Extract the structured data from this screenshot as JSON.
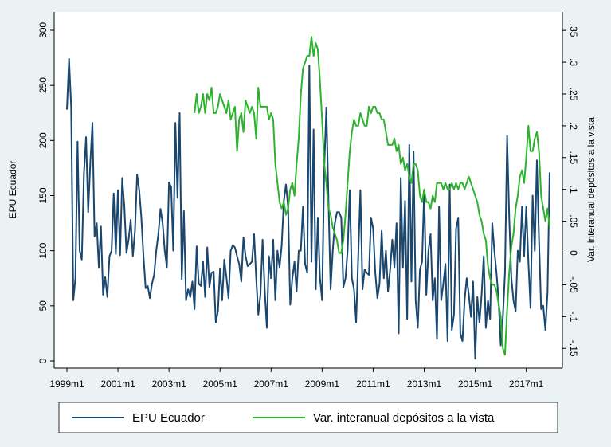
{
  "chart_data": {
    "type": "line",
    "x": [
      "1999m1",
      "1999m2",
      "1999m3",
      "1999m4",
      "1999m5",
      "1999m6",
      "1999m7",
      "1999m8",
      "1999m9",
      "1999m10",
      "1999m11",
      "1999m12",
      "2000m1",
      "2000m2",
      "2000m3",
      "2000m4",
      "2000m5",
      "2000m6",
      "2000m7",
      "2000m8",
      "2000m9",
      "2000m10",
      "2000m11",
      "2000m12",
      "2001m1",
      "2001m2",
      "2001m3",
      "2001m4",
      "2001m5",
      "2001m6",
      "2001m7",
      "2001m8",
      "2001m9",
      "2001m10",
      "2001m11",
      "2001m12",
      "2002m1",
      "2002m2",
      "2002m3",
      "2002m4",
      "2002m5",
      "2002m6",
      "2002m7",
      "2002m8",
      "2002m9",
      "2002m10",
      "2002m11",
      "2002m12",
      "2003m1",
      "2003m2",
      "2003m3",
      "2003m4",
      "2003m5",
      "2003m6",
      "2003m7",
      "2003m8",
      "2003m9",
      "2003m10",
      "2003m11",
      "2003m12",
      "2004m1",
      "2004m2",
      "2004m3",
      "2004m4",
      "2004m5",
      "2004m6",
      "2004m7",
      "2004m8",
      "2004m9",
      "2004m10",
      "2004m11",
      "2004m12",
      "2005m1",
      "2005m2",
      "2005m3",
      "2005m4",
      "2005m5",
      "2005m6",
      "2005m7",
      "2005m8",
      "2005m9",
      "2005m10",
      "2005m11",
      "2005m12",
      "2006m1",
      "2006m2",
      "2006m3",
      "2006m4",
      "2006m5",
      "2006m6",
      "2006m7",
      "2006m8",
      "2006m9",
      "2006m10",
      "2006m11",
      "2006m12",
      "2007m1",
      "2007m2",
      "2007m3",
      "2007m4",
      "2007m5",
      "2007m6",
      "2007m7",
      "2007m8",
      "2007m9",
      "2007m10",
      "2007m11",
      "2007m12",
      "2008m1",
      "2008m2",
      "2008m3",
      "2008m4",
      "2008m5",
      "2008m6",
      "2008m7",
      "2008m8",
      "2008m9",
      "2008m10",
      "2008m11",
      "2008m12",
      "2009m1",
      "2009m2",
      "2009m3",
      "2009m4",
      "2009m5",
      "2009m6",
      "2009m7",
      "2009m8",
      "2009m9",
      "2009m10",
      "2009m11",
      "2009m12",
      "2010m1",
      "2010m2",
      "2010m3",
      "2010m4",
      "2010m5",
      "2010m6",
      "2010m7",
      "2010m8",
      "2010m9",
      "2010m10",
      "2010m11",
      "2010m12",
      "2011m1",
      "2011m2",
      "2011m3",
      "2011m4",
      "2011m5",
      "2011m6",
      "2011m7",
      "2011m8",
      "2011m9",
      "2011m10",
      "2011m11",
      "2011m12",
      "2012m1",
      "2012m2",
      "2012m3",
      "2012m4",
      "2012m5",
      "2012m6",
      "2012m7",
      "2012m8",
      "2012m9",
      "2012m10",
      "2012m11",
      "2012m12",
      "2013m1",
      "2013m2",
      "2013m3",
      "2013m4",
      "2013m5",
      "2013m6",
      "2013m7",
      "2013m8",
      "2013m9",
      "2013m10",
      "2013m11",
      "2013m12",
      "2014m1",
      "2014m2",
      "2014m3",
      "2014m4",
      "2014m5",
      "2014m6",
      "2014m7",
      "2014m8",
      "2014m9",
      "2014m10",
      "2014m11",
      "2014m12",
      "2015m1",
      "2015m2",
      "2015m3",
      "2015m4",
      "2015m5",
      "2015m6",
      "2015m7",
      "2015m8",
      "2015m9",
      "2015m10",
      "2015m11",
      "2015m12",
      "2016m1",
      "2016m2",
      "2016m3",
      "2016m4",
      "2016m5",
      "2016m6",
      "2016m7",
      "2016m8",
      "2016m9",
      "2016m10",
      "2016m11",
      "2016m12",
      "2017m1",
      "2017m2",
      "2017m3",
      "2017m4",
      "2017m5",
      "2017m6",
      "2017m7",
      "2017m8",
      "2017m9",
      "2017m10",
      "2017m11",
      "2017m12"
    ],
    "series": [
      {
        "name": "EPU Ecuador",
        "color": "#1a476f",
        "values": [
          228,
          274,
          230,
          55,
          75,
          199,
          100,
          92,
          170,
          203,
          135,
          180,
          216,
          113,
          125,
          85,
          122,
          60,
          76,
          58,
          95,
          100,
          152,
          97,
          155,
          96,
          166,
          140,
          98,
          110,
          128,
          95,
          118,
          169,
          155,
          130,
          95,
          66,
          68,
          57,
          70,
          78,
          100,
          115,
          138,
          125,
          100,
          85,
          162,
          158,
          100,
          216,
          148,
          225,
          74,
          136,
          55,
          65,
          58,
          72,
          47,
          104,
          70,
          68,
          90,
          58,
          103,
          67,
          80,
          81,
          35,
          45,
          84,
          55,
          92,
          76,
          57,
          100,
          105,
          103,
          95,
          88,
          72,
          112,
          95,
          86,
          88,
          90,
          115,
          75,
          42,
          60,
          110,
          65,
          30,
          95,
          75,
          110,
          55,
          100,
          85,
          105,
          145,
          160,
          140,
          51,
          75,
          90,
          63,
          100,
          100,
          140,
          88,
          80,
          268,
          90,
          210,
          65,
          130,
          75,
          55,
          175,
          230,
          145,
          65,
          100,
          125,
          135,
          135,
          130,
          67,
          75,
          100,
          155,
          75,
          65,
          35,
          95,
          155,
          65,
          83,
          80,
          78,
          130,
          120,
          80,
          57,
          70,
          118,
          75,
          100,
          63,
          83,
          110,
          85,
          125,
          25,
          166,
          85,
          145,
          38,
          196,
          72,
          190,
          55,
          30,
          83,
          90,
          155,
          60,
          100,
          115,
          55,
          75,
          20,
          140,
          55,
          70,
          88,
          18,
          160,
          28,
          42,
          120,
          130,
          25,
          18,
          55,
          75,
          60,
          40,
          72,
          2,
          58,
          35,
          60,
          95,
          30,
          55,
          38,
          125,
          100,
          80,
          55,
          14,
          40,
          80,
          204,
          130,
          75,
          55,
          45,
          100,
          90,
          140,
          95,
          140,
          90,
          48,
          150,
          100,
          182,
          110,
          47,
          50,
          28,
          62,
          171
        ]
      },
      {
        "name": "Var. interanual depósitos a la vista",
        "color": "#2db22d",
        "axis": "y2",
        "values": [
          null,
          null,
          null,
          null,
          null,
          null,
          null,
          null,
          null,
          null,
          null,
          null,
          null,
          null,
          null,
          null,
          null,
          null,
          null,
          null,
          null,
          null,
          null,
          null,
          null,
          null,
          null,
          null,
          null,
          null,
          null,
          null,
          null,
          null,
          null,
          null,
          null,
          null,
          null,
          null,
          null,
          null,
          null,
          null,
          null,
          null,
          null,
          null,
          null,
          null,
          null,
          null,
          null,
          null,
          null,
          null,
          null,
          null,
          null,
          null,
          0.22,
          0.25,
          0.22,
          0.23,
          0.25,
          0.22,
          0.25,
          0.24,
          0.26,
          0.22,
          0.22,
          0.23,
          0.25,
          0.24,
          0.23,
          0.22,
          0.24,
          0.21,
          0.22,
          0.23,
          0.16,
          0.21,
          0.22,
          0.19,
          0.24,
          0.23,
          0.22,
          0.23,
          0.22,
          0.18,
          0.26,
          0.23,
          0.23,
          0.23,
          0.23,
          0.21,
          0.22,
          0.21,
          0.14,
          0.11,
          0.08,
          0.07,
          0.08,
          0.06,
          0.07,
          0.1,
          0.11,
          0.09,
          0.14,
          0.18,
          0.25,
          0.29,
          0.3,
          0.31,
          0.31,
          0.34,
          0.31,
          0.33,
          0.32,
          0.27,
          0.21,
          0.14,
          0.11,
          0.07,
          0.06,
          0.04,
          0.03,
          0.02,
          0.0,
          0.0,
          0.02,
          0.06,
          0.11,
          0.16,
          0.19,
          0.21,
          0.2,
          0.2,
          0.22,
          0.21,
          0.2,
          0.2,
          0.23,
          0.22,
          0.23,
          0.23,
          0.22,
          0.22,
          0.21,
          0.21,
          0.19,
          0.17,
          0.17,
          0.17,
          0.18,
          0.16,
          0.17,
          0.14,
          0.15,
          0.13,
          0.14,
          0.12,
          0.11,
          0.14,
          0.14,
          0.13,
          0.09,
          0.08,
          0.1,
          0.08,
          0.08,
          0.07,
          0.09,
          0.08,
          0.11,
          0.11,
          0.11,
          0.1,
          0.11,
          0.1,
          0.1,
          0.11,
          0.1,
          0.11,
          0.1,
          0.11,
          0.11,
          0.1,
          0.11,
          0.12,
          0.11,
          0.1,
          0.09,
          0.08,
          0.06,
          0.05,
          0.03,
          0.02,
          -0.02,
          -0.04,
          -0.05,
          -0.05,
          -0.06,
          -0.08,
          -0.1,
          -0.15,
          -0.16,
          -0.09,
          -0.03,
          0.01,
          0.03,
          0.07,
          0.09,
          0.12,
          0.13,
          0.11,
          0.15,
          0.2,
          0.16,
          0.16,
          0.18,
          0.19,
          0.16,
          0.09,
          0.07,
          0.05,
          0.07,
          0.04
        ]
      }
    ],
    "xlim": [
      "1998m7",
      "2018m6"
    ],
    "xticks": [
      "1999m1",
      "2001m1",
      "2003m1",
      "2005m1",
      "2007m1",
      "2009m1",
      "2011m1",
      "2013m1",
      "2015m1",
      "2017m1"
    ],
    "ylabel": "EPU Ecuador",
    "ylim": [
      -6.5,
      316.6
    ],
    "yticks": [
      0,
      50,
      100,
      150,
      200,
      250,
      300
    ],
    "y2label": "Var. interanual depósitos a la vista",
    "y2lim": [
      -0.181,
      0.379
    ],
    "y2ticks": [
      {
        "value": -0.15,
        "label": "-.15"
      },
      {
        "value": -0.1,
        "label": "-.1"
      },
      {
        "value": -0.05,
        "label": "-.05"
      },
      0,
      {
        "value": 0.05,
        "label": ".05"
      },
      {
        "value": 0.1,
        "label": ".1"
      },
      {
        "value": 0.15,
        "label": ".15"
      },
      {
        "value": 0.2,
        "label": ".2"
      },
      {
        "value": 0.25,
        "label": ".25"
      },
      {
        "value": 0.3,
        "label": ".3"
      },
      {
        "value": 0.35,
        "label": ".35"
      }
    ],
    "legend": "bottom"
  }
}
